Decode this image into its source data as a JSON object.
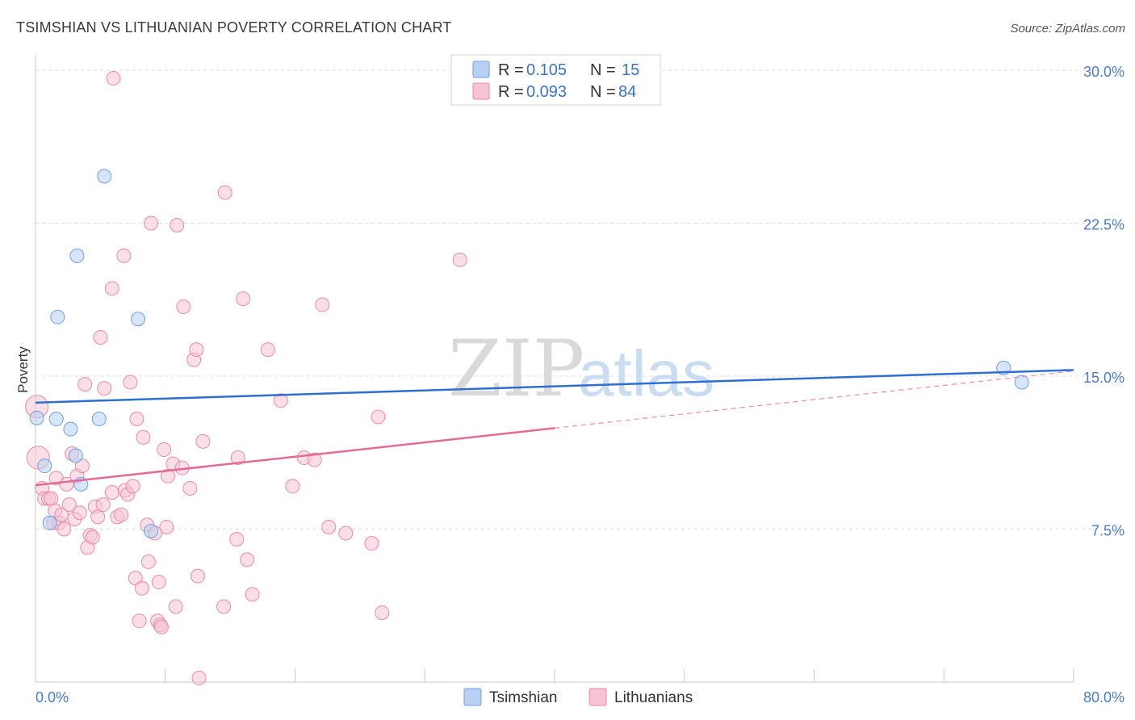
{
  "chart_data": {
    "type": "scatter",
    "title": "TSIMSHIAN VS LITHUANIAN POVERTY CORRELATION CHART",
    "source": "Source: ZipAtlas.com",
    "ylabel": "Poverty",
    "xlim": [
      0,
      80
    ],
    "ylim": [
      0,
      30.75
    ],
    "x_tick_labels": [
      "0.0%",
      "80.0%"
    ],
    "y_ticks": [
      {
        "value": 7.5,
        "label": "7.5%"
      },
      {
        "value": 15.0,
        "label": "15.0%"
      },
      {
        "value": 22.5,
        "label": "22.5%"
      },
      {
        "value": 30.0,
        "label": "30.0%"
      }
    ],
    "watermark": {
      "zip": "ZIP",
      "atlas": "atlas"
    },
    "legend": {
      "entries": [
        {
          "r_label": "R =",
          "r_value": "0.105",
          "n_label": "N =",
          "n_value": "15"
        },
        {
          "r_label": "R =",
          "r_value": "0.093",
          "n_label": "N =",
          "n_value": "84"
        }
      ]
    },
    "series": [
      {
        "name": "Tsimshian",
        "color": "#6f9fe0",
        "fill": "#b7d0f3",
        "trend": {
          "x0": 0,
          "y0": 13.7,
          "x1": 80,
          "y1": 15.3
        },
        "points": [
          [
            0.1,
            12.95
          ],
          [
            0.7,
            10.6
          ],
          [
            1.1,
            7.8
          ],
          [
            1.6,
            12.9
          ],
          [
            1.7,
            17.9
          ],
          [
            2.7,
            12.4
          ],
          [
            3.1,
            11.1
          ],
          [
            3.2,
            20.9
          ],
          [
            3.5,
            9.7
          ],
          [
            4.9,
            12.9
          ],
          [
            5.3,
            24.8
          ],
          [
            7.9,
            17.8
          ],
          [
            8.9,
            7.4
          ],
          [
            74.6,
            15.4
          ],
          [
            76.0,
            14.7
          ]
        ]
      },
      {
        "name": "Lithuanians",
        "color": "#e98aa8",
        "fill": "#f8c4d4",
        "trend": {
          "x0": 0,
          "y0": 9.65,
          "x1": 40.0,
          "y1": 12.45
        },
        "trend_ext": {
          "x0": 40.0,
          "y0": 12.45,
          "x1": 80,
          "y1": 15.25
        },
        "points": [
          [
            0.1,
            13.5
          ],
          [
            0.2,
            11.0
          ],
          [
            0.5,
            9.5
          ],
          [
            0.7,
            9.0
          ],
          [
            1.0,
            9.0
          ],
          [
            1.2,
            9.0
          ],
          [
            1.4,
            7.8
          ],
          [
            1.5,
            8.4
          ],
          [
            1.6,
            10.0
          ],
          [
            1.8,
            7.8
          ],
          [
            2.0,
            8.2
          ],
          [
            2.2,
            7.5
          ],
          [
            2.4,
            9.7
          ],
          [
            2.6,
            8.7
          ],
          [
            2.8,
            11.2
          ],
          [
            3.0,
            8.0
          ],
          [
            3.2,
            10.1
          ],
          [
            3.4,
            8.3
          ],
          [
            3.6,
            10.6
          ],
          [
            3.8,
            14.6
          ],
          [
            4.0,
            6.6
          ],
          [
            4.2,
            7.2
          ],
          [
            4.4,
            7.1
          ],
          [
            4.6,
            8.6
          ],
          [
            4.8,
            8.1
          ],
          [
            5.0,
            16.9
          ],
          [
            5.2,
            8.7
          ],
          [
            5.3,
            14.4
          ],
          [
            5.9,
            19.3
          ],
          [
            5.9,
            9.3
          ],
          [
            6.0,
            29.6
          ],
          [
            6.3,
            8.1
          ],
          [
            6.6,
            8.2
          ],
          [
            6.8,
            20.9
          ],
          [
            6.9,
            9.4
          ],
          [
            7.1,
            9.2
          ],
          [
            7.3,
            14.7
          ],
          [
            7.5,
            9.6
          ],
          [
            7.7,
            5.1
          ],
          [
            7.8,
            12.9
          ],
          [
            8.0,
            3.0
          ],
          [
            8.2,
            4.6
          ],
          [
            8.3,
            12.0
          ],
          [
            8.6,
            7.7
          ],
          [
            8.7,
            5.9
          ],
          [
            8.9,
            22.5
          ],
          [
            9.2,
            7.3
          ],
          [
            9.4,
            3.0
          ],
          [
            9.5,
            4.9
          ],
          [
            9.6,
            2.8
          ],
          [
            9.7,
            2.7
          ],
          [
            9.9,
            11.4
          ],
          [
            10.1,
            7.6
          ],
          [
            10.2,
            10.1
          ],
          [
            10.6,
            10.7
          ],
          [
            10.8,
            3.7
          ],
          [
            10.9,
            22.4
          ],
          [
            11.3,
            10.5
          ],
          [
            11.4,
            18.4
          ],
          [
            11.9,
            9.5
          ],
          [
            12.2,
            15.8
          ],
          [
            12.4,
            16.3
          ],
          [
            12.5,
            5.2
          ],
          [
            12.6,
            0.2
          ],
          [
            12.9,
            11.8
          ],
          [
            14.5,
            3.7
          ],
          [
            14.6,
            24.0
          ],
          [
            15.5,
            7.0
          ],
          [
            15.6,
            11.0
          ],
          [
            16.0,
            18.8
          ],
          [
            16.3,
            6.0
          ],
          [
            16.7,
            4.3
          ],
          [
            17.9,
            16.3
          ],
          [
            18.9,
            13.8
          ],
          [
            19.8,
            9.6
          ],
          [
            20.7,
            11.0
          ],
          [
            21.5,
            10.9
          ],
          [
            22.1,
            18.5
          ],
          [
            22.6,
            7.6
          ],
          [
            23.9,
            7.3
          ],
          [
            25.9,
            6.8
          ],
          [
            26.4,
            13.0
          ],
          [
            26.7,
            3.4
          ],
          [
            32.7,
            20.7
          ]
        ]
      }
    ]
  }
}
